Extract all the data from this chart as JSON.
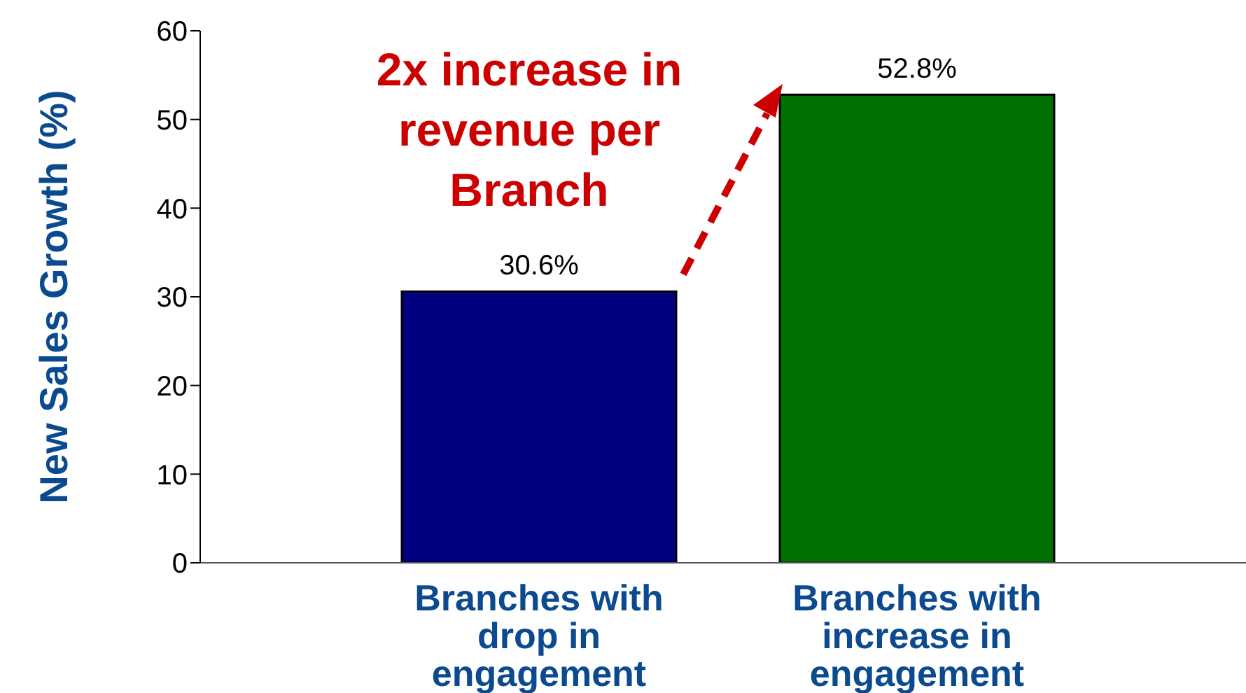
{
  "chart_data": {
    "type": "bar",
    "ylabel": "New Sales Growth (%)",
    "categories": [
      "Branches with drop in engagement",
      "Branches with increase in engagement"
    ],
    "values": [
      30.6,
      52.8
    ],
    "colors": [
      "#000080",
      "#007000"
    ],
    "value_labels": [
      "30.6%",
      "52.8%"
    ],
    "ylim": [
      0,
      60
    ],
    "yticks": [
      0,
      10,
      20,
      30,
      40,
      50,
      60
    ],
    "annotations": [
      "2x increase in revenue per Branch"
    ]
  }
}
